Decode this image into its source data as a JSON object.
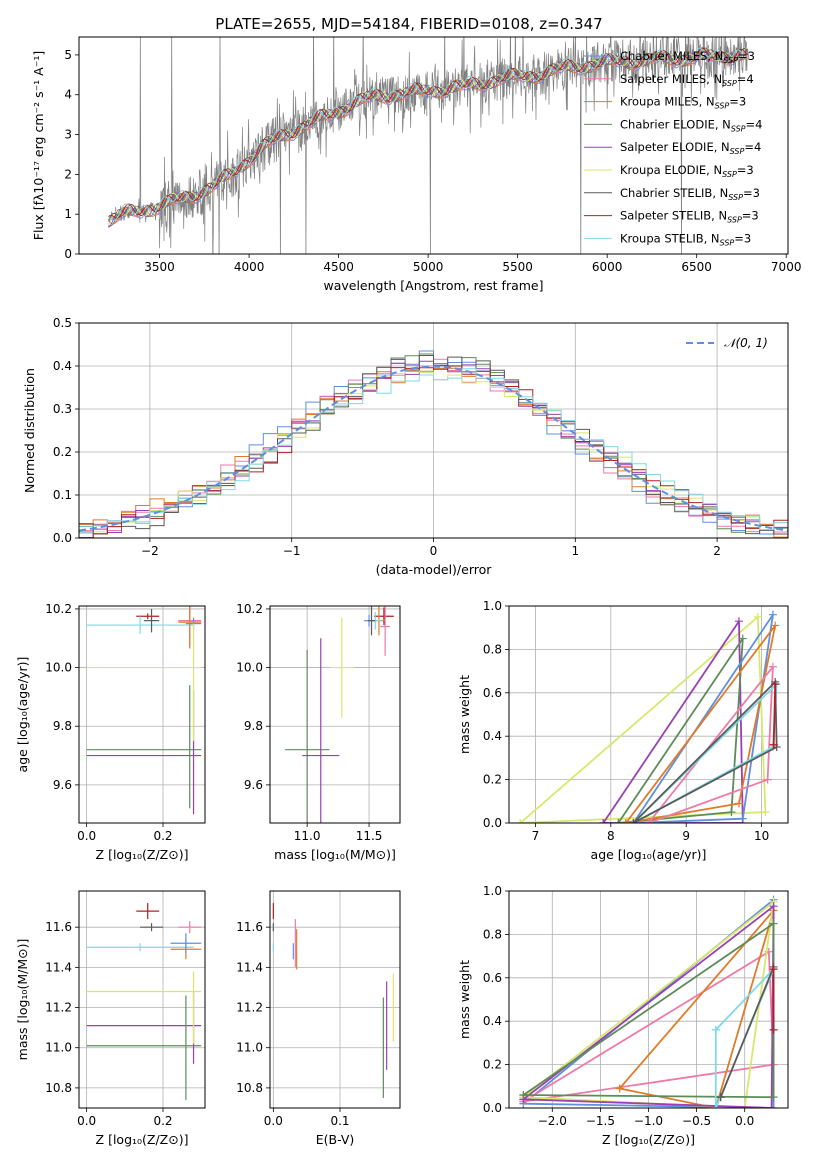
{
  "suptitle": "PLATE=2655, MJD=54184, FIBERID=0108, z=0.347",
  "colors": {
    "chab_miles": "#5f8fe0",
    "salp_miles": "#ee7aa8",
    "kroupa_miles": "#e07b2a",
    "chab_elodie": "#5e8b5a",
    "salp_elodie": "#9b3fb5",
    "kroupa_elodie": "#d8e86a",
    "chab_stelib": "#5a5a5a",
    "salp_stelib": "#b02020",
    "kroupa_stelib": "#7fd8e6",
    "gauss": "#5f8fe0",
    "data": "#808080"
  },
  "chart_data": [
    {
      "id": "spectrum",
      "type": "line",
      "title": "PLATE=2655, MJD=54184, FIBERID=0108, z=0.347",
      "xlabel": "wavelength [Angstrom, rest frame]",
      "ylabel": "Flux [fλ10⁻¹⁷ erg cm⁻² s⁻¹ A⁻¹]",
      "xlim": [
        3050,
        7010
      ],
      "ylim": [
        0,
        5.45
      ],
      "xticks": [
        3500,
        4000,
        4500,
        5000,
        5500,
        6000,
        6500,
        7000
      ],
      "yticks": [
        0,
        1,
        2,
        3,
        4,
        5
      ],
      "grid": false,
      "legend": "upper right",
      "series": [
        {
          "name": "Chabrier MILES, N_SSP=3"
        },
        {
          "name": "Salpeter MILES, N_SSP=4"
        },
        {
          "name": "Kroupa MILES, N_SSP=3"
        },
        {
          "name": "Chabrier ELODIE, N_SSP=4"
        },
        {
          "name": "Salpeter ELODIE, N_SSP=4"
        },
        {
          "name": "Kroupa ELODIE, N_SSP=3"
        },
        {
          "name": "Chabrier STELIB, N_SSP=3"
        },
        {
          "name": "Salpeter STELIB, N_SSP=3"
        },
        {
          "name": "Kroupa STELIB, N_SSP=3"
        }
      ],
      "model_continuum": {
        "x": [
          3200,
          3300,
          3400,
          3500,
          3600,
          3700,
          3800,
          3900,
          4000,
          4100,
          4200,
          4300,
          4400,
          4500,
          4600,
          4700,
          4800,
          4900,
          5000,
          5100,
          5200,
          5300,
          5400,
          5500,
          5600,
          5700,
          5800,
          5900,
          6000,
          6100,
          6200,
          6300,
          6400,
          6500,
          6600,
          6700,
          6750
        ],
        "y": [
          0.8,
          1.0,
          1.1,
          1.2,
          1.35,
          1.5,
          1.7,
          2.0,
          2.4,
          2.75,
          3.0,
          3.2,
          3.4,
          3.6,
          3.8,
          3.95,
          4.0,
          4.05,
          4.1,
          4.15,
          4.2,
          4.3,
          4.4,
          4.45,
          4.5,
          4.6,
          4.7,
          4.75,
          4.8,
          4.85,
          4.85,
          4.9,
          4.9,
          4.95,
          4.95,
          5.0,
          5.0
        ]
      }
    },
    {
      "id": "residuals",
      "type": "histogram",
      "xlabel": "(data-model)/error",
      "ylabel": "Normed distribution",
      "xlim": [
        -2.5,
        2.5
      ],
      "ylim": [
        0,
        0.5
      ],
      "xticks": [
        -2,
        -1,
        0,
        1,
        2
      ],
      "yticks": [
        0.0,
        0.1,
        0.2,
        0.3,
        0.4,
        0.5
      ],
      "grid": true,
      "legend": "upper right",
      "gaussian_label": "𝒩(0, 1)",
      "bin_width": 0.1
    },
    {
      "id": "age_Z",
      "type": "errorbar",
      "xlabel": "Z [log₁₀(Z/Z⊙)]",
      "ylabel": "age  [log₁₀(age/yr)]",
      "xlim": [
        -0.02,
        0.31
      ],
      "ylim": [
        9.47,
        10.21
      ],
      "xticks": [
        0.0,
        0.2
      ],
      "yticks": [
        9.6,
        9.8,
        10.0,
        10.2
      ],
      "grid": true,
      "points": [
        {
          "x": 0.16,
          "y": 10.175,
          "x_err": 0.03,
          "y_err": 0.01,
          "color": "salp_stelib"
        },
        {
          "x": 0.14,
          "y": 10.145,
          "x_err": 0.14,
          "y_err": 0.03,
          "color": "kroupa_stelib"
        },
        {
          "x": 0.17,
          "y": 10.16,
          "x_err": 0.02,
          "y_err": 0.04,
          "color": "chab_stelib"
        },
        {
          "x": 0.27,
          "y": 10.16,
          "x_err": 0.03,
          "y_err": 0.09,
          "color": "salp_miles"
        },
        {
          "x": 0.27,
          "y": 10.155,
          "x_err": 0.03,
          "y_err": 0.09,
          "color": "kroupa_miles"
        },
        {
          "x": 0.28,
          "y": 10.15,
          "x_err": 0.02,
          "y_err": 0.02,
          "color": "chab_miles"
        },
        {
          "x": 0.15,
          "y": 10.0,
          "x_err": 0.15,
          "y_err": 0.0,
          "color": "kroupa_elodie"
        },
        {
          "x": 0.15,
          "y": 9.72,
          "x_err": 0.15,
          "y_err": 0.0,
          "color": "chab_elodie"
        },
        {
          "x": 0.15,
          "y": 9.7,
          "x_err": 0.15,
          "y_err": 0.0,
          "color": "salp_elodie"
        },
        {
          "x": 0.27,
          "y": 9.73,
          "x_err": 0.0,
          "y_err": 0.21,
          "color": "chab_elodie"
        },
        {
          "x": 0.28,
          "y": 9.71,
          "x_err": 0.0,
          "y_err": 0.21,
          "color": "salp_elodie"
        },
        {
          "x": 0.28,
          "y": 9.95,
          "x_err": 0.0,
          "y_err": 0.2,
          "color": "kroupa_elodie"
        }
      ]
    },
    {
      "id": "age_mass",
      "type": "errorbar",
      "xlabel": "mass [log₁₀(M/M⊙)]",
      "xlim": [
        10.7,
        11.75
      ],
      "ylim": [
        9.47,
        10.21
      ],
      "xticks": [
        11.0,
        11.5
      ],
      "yticks": [
        9.6,
        9.8,
        10.0,
        10.2
      ],
      "grid": true,
      "points": [
        {
          "x": 11.5,
          "y": 10.16,
          "x_err": 0.04,
          "y_err": 0.02,
          "color": "chab_miles"
        },
        {
          "x": 11.62,
          "y": 10.175,
          "x_err": 0.08,
          "y_err": 0.03,
          "color": "salp_stelib"
        },
        {
          "x": 11.58,
          "y": 10.16,
          "x_err": 0.05,
          "y_err": 0.05,
          "color": "kroupa_miles"
        },
        {
          "x": 11.55,
          "y": 10.16,
          "x_err": 0.05,
          "y_err": 0.03,
          "color": "kroupa_stelib"
        },
        {
          "x": 11.52,
          "y": 10.16,
          "x_err": 0.03,
          "y_err": 0.05,
          "color": "chab_stelib"
        },
        {
          "x": 11.63,
          "y": 10.14,
          "x_err": 0.04,
          "y_err": 0.1,
          "color": "salp_miles"
        },
        {
          "x": 11.28,
          "y": 10.0,
          "x_err": 0.1,
          "y_err": 0.17,
          "color": "kroupa_elodie"
        },
        {
          "x": 11.0,
          "y": 9.72,
          "x_err": 0.18,
          "y_err": 0.34,
          "color": "chab_elodie"
        },
        {
          "x": 11.11,
          "y": 9.7,
          "x_err": 0.15,
          "y_err": 0.4,
          "color": "salp_elodie"
        }
      ]
    },
    {
      "id": "weight_age",
      "type": "line",
      "xlabel": "age  [log₁₀(age/yr)]",
      "ylabel": "mass weight",
      "xlim": [
        6.65,
        10.35
      ],
      "ylim": [
        0,
        1.0
      ],
      "xticks": [
        7,
        8,
        9,
        10
      ],
      "yticks": [
        0.0,
        0.2,
        0.4,
        0.6,
        0.8,
        1.0
      ],
      "grid": true,
      "series": [
        {
          "color": "kroupa_elodie",
          "x": [
            6.8,
            9.95,
            10.05,
            6.8
          ],
          "y": [
            0.0,
            0.95,
            0.05,
            0.0
          ]
        },
        {
          "color": "salp_elodie",
          "x": [
            7.9,
            9.7,
            9.75,
            7.9
          ],
          "y": [
            0.0,
            0.93,
            0.0,
            0.0
          ]
        },
        {
          "color": "chab_elodie",
          "x": [
            8.1,
            9.6,
            9.75,
            8.1
          ],
          "y": [
            0.0,
            0.05,
            0.85,
            0.0
          ]
        },
        {
          "color": "chab_miles",
          "x": [
            8.3,
            9.75,
            10.15,
            8.3
          ],
          "y": [
            0.0,
            0.02,
            0.96,
            0.0
          ]
        },
        {
          "color": "kroupa_miles",
          "x": [
            8.2,
            9.7,
            10.18,
            8.2
          ],
          "y": [
            0.0,
            0.09,
            0.91,
            0.0
          ]
        },
        {
          "color": "salp_miles",
          "x": [
            8.5,
            10.08,
            10.15,
            8.5
          ],
          "y": [
            0.0,
            0.2,
            0.72,
            0.0
          ]
        },
        {
          "color": "kroupa_stelib",
          "x": [
            8.3,
            10.15,
            10.2,
            8.3
          ],
          "y": [
            0.0,
            0.35,
            0.64,
            0.0
          ]
        },
        {
          "color": "chab_stelib",
          "x": [
            8.3,
            10.2,
            10.18,
            8.3
          ],
          "y": [
            0.0,
            0.35,
            0.65,
            0.0
          ]
        },
        {
          "color": "salp_stelib",
          "x": [
            10.16,
            10.18,
            10.16
          ],
          "y": [
            0.36,
            0.64,
            0.36
          ]
        }
      ]
    },
    {
      "id": "mass_Z",
      "type": "errorbar",
      "xlabel": "Z [log₁₀(Z/Z⊙)]",
      "ylabel": "mass [log₁₀(M/M⊙)]",
      "xlim": [
        -0.02,
        0.31
      ],
      "ylim": [
        10.7,
        11.78
      ],
      "xticks": [
        0.0,
        0.2
      ],
      "yticks": [
        10.8,
        11.0,
        11.2,
        11.4,
        11.6
      ],
      "grid": true,
      "points": [
        {
          "x": 0.16,
          "y": 11.68,
          "x_err": 0.03,
          "y_err": 0.04,
          "color": "salp_stelib"
        },
        {
          "x": 0.17,
          "y": 11.6,
          "x_err": 0.03,
          "y_err": 0.02,
          "color": "chab_stelib"
        },
        {
          "x": 0.14,
          "y": 11.5,
          "x_err": 0.14,
          "y_err": 0.02,
          "color": "kroupa_stelib"
        },
        {
          "x": 0.26,
          "y": 11.49,
          "x_err": 0.04,
          "y_err": 0.05,
          "color": "kroupa_miles"
        },
        {
          "x": 0.26,
          "y": 11.52,
          "x_err": 0.04,
          "y_err": 0.05,
          "color": "chab_miles"
        },
        {
          "x": 0.27,
          "y": 11.6,
          "x_err": 0.03,
          "y_err": 0.03,
          "color": "salp_miles"
        },
        {
          "x": 0.15,
          "y": 11.28,
          "x_err": 0.15,
          "y_err": 0.0,
          "color": "kroupa_elodie"
        },
        {
          "x": 0.15,
          "y": 11.11,
          "x_err": 0.15,
          "y_err": 0.0,
          "color": "salp_elodie"
        },
        {
          "x": 0.15,
          "y": 11.01,
          "x_err": 0.15,
          "y_err": 0.0,
          "color": "chab_elodie"
        },
        {
          "x": 0.26,
          "y": 11.0,
          "x_err": 0.0,
          "y_err": 0.26,
          "color": "chab_elodie"
        },
        {
          "x": 0.28,
          "y": 11.1,
          "x_err": 0.0,
          "y_err": 0.18,
          "color": "salp_elodie"
        },
        {
          "x": 0.28,
          "y": 11.2,
          "x_err": 0.0,
          "y_err": 0.18,
          "color": "kroupa_elodie"
        }
      ]
    },
    {
      "id": "mass_ebv",
      "type": "errorbar",
      "xlabel": "E(B-V)",
      "xlim": [
        -0.005,
        0.19
      ],
      "ylim": [
        10.7,
        11.78
      ],
      "xticks": [
        0.0,
        0.1
      ],
      "yticks": [
        10.8,
        11.0,
        11.2,
        11.4,
        11.6
      ],
      "grid": true,
      "points": [
        {
          "x": 0.0,
          "y": 11.68,
          "x_err": 0.0,
          "y_err": 0.04,
          "color": "salp_stelib"
        },
        {
          "x": 0.0,
          "y": 11.6,
          "x_err": 0.0,
          "y_err": 0.02,
          "color": "chab_stelib"
        },
        {
          "x": 0.0,
          "y": 11.5,
          "x_err": 0.0,
          "y_err": 0.02,
          "color": "kroupa_stelib"
        },
        {
          "x": 0.033,
          "y": 11.52,
          "x_err": 0.0,
          "y_err": 0.12,
          "color": "salp_miles"
        },
        {
          "x": 0.035,
          "y": 11.49,
          "x_err": 0.0,
          "y_err": 0.1,
          "color": "kroupa_miles"
        },
        {
          "x": 0.03,
          "y": 11.48,
          "x_err": 0.0,
          "y_err": 0.04,
          "color": "chab_miles"
        },
        {
          "x": 0.165,
          "y": 11.0,
          "x_err": 0.0,
          "y_err": 0.25,
          "color": "chab_elodie"
        },
        {
          "x": 0.17,
          "y": 11.11,
          "x_err": 0.0,
          "y_err": 0.22,
          "color": "salp_elodie"
        },
        {
          "x": 0.18,
          "y": 11.2,
          "x_err": 0.0,
          "y_err": 0.17,
          "color": "kroupa_elodie"
        }
      ]
    },
    {
      "id": "weight_Z",
      "type": "line",
      "xlabel": "Z [log₁₀(Z/Z⊙)]",
      "ylabel": "mass weight",
      "xlim": [
        -2.45,
        0.45
      ],
      "ylim": [
        0,
        1.0
      ],
      "xticks": [
        -2.0,
        -1.5,
        -1.0,
        -0.5,
        0.0
      ],
      "yticks": [
        0.0,
        0.2,
        0.4,
        0.6,
        0.8,
        1.0
      ],
      "grid": true,
      "series": [
        {
          "color": "chab_miles",
          "x": [
            -2.3,
            0.3,
            0.3,
            -2.3
          ],
          "y": [
            0.02,
            0.96,
            0.0,
            0.02
          ]
        },
        {
          "color": "salp_miles",
          "x": [
            -2.3,
            0.25,
            0.3,
            -2.3
          ],
          "y": [
            0.03,
            0.72,
            0.2,
            0.03
          ]
        },
        {
          "color": "kroupa_miles",
          "x": [
            -1.3,
            0.3,
            -0.3,
            -1.3
          ],
          "y": [
            0.09,
            0.91,
            0.0,
            0.09
          ]
        },
        {
          "color": "kroupa_elodie",
          "x": [
            -2.3,
            0.0,
            0.3,
            -2.3
          ],
          "y": [
            0.05,
            0.0,
            0.95,
            0.05
          ]
        },
        {
          "color": "salp_elodie",
          "x": [
            -2.3,
            0.28,
            0.3,
            -2.3
          ],
          "y": [
            0.04,
            0.0,
            0.93,
            0.04
          ]
        },
        {
          "color": "chab_elodie",
          "x": [
            -2.3,
            0.3,
            0.3,
            -2.3
          ],
          "y": [
            0.06,
            0.85,
            0.05,
            0.06
          ]
        },
        {
          "color": "kroupa_stelib",
          "x": [
            -0.3,
            -0.3,
            0.3,
            -0.3
          ],
          "y": [
            0.36,
            0.0,
            0.64,
            0.36
          ]
        },
        {
          "color": "chab_stelib",
          "x": [
            -0.25,
            0.3,
            -0.25
          ],
          "y": [
            0.05,
            0.65,
            0.05
          ]
        },
        {
          "color": "salp_stelib",
          "x": [
            0.3,
            0.3
          ],
          "y": [
            0.36,
            0.64
          ]
        }
      ]
    }
  ]
}
